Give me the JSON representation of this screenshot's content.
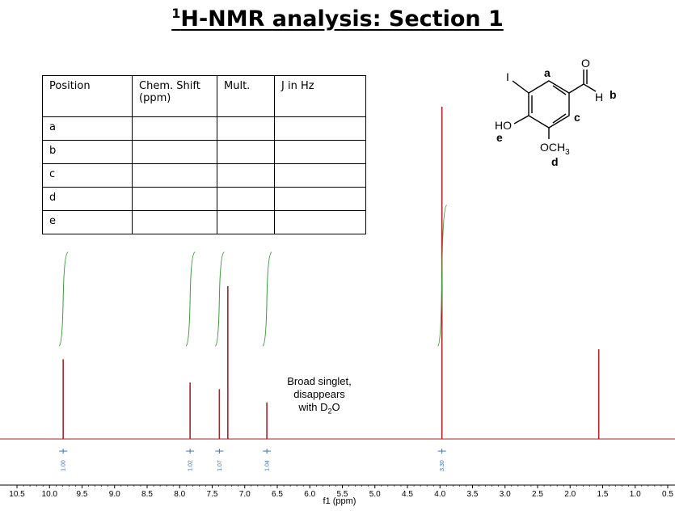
{
  "title_prefix": "1",
  "title_rest": "H-NMR analysis: Section 1",
  "table": {
    "headers": [
      "Position",
      "Chem. Shift (ppm)",
      "Mult.",
      "J in Hz"
    ],
    "rows": [
      "a",
      "b",
      "c",
      "d",
      "e"
    ]
  },
  "annotation": {
    "line1": "Broad singlet,",
    "line2": "disappears",
    "line3_prefix": "with D",
    "line3_sub": "2",
    "line3_suffix": "O"
  },
  "structure": {
    "label_a": "a",
    "label_b": "b",
    "label_c": "c",
    "label_d": "d",
    "label_e": "e",
    "iodo": "I",
    "oxygen": "O",
    "hydroxyl": "HO",
    "hydrogen": "H",
    "methoxy": "OCH",
    "methoxy_sub": "3"
  },
  "chart_data": {
    "type": "line",
    "xlabel": "f1 (ppm)",
    "xlim": [
      10.5,
      0.5
    ],
    "x_reversed": true,
    "xticks": [
      "10.5",
      "10.0",
      "9.5",
      "9.0",
      "8.5",
      "8.0",
      "7.5",
      "7.0",
      "6.5",
      "6.0",
      "5.5",
      "5.0",
      "4.5",
      "4.0",
      "3.5",
      "3.0",
      "2.5",
      "2.0",
      "1.5",
      "1.0",
      "0.5"
    ],
    "peaks": [
      {
        "shift": 9.79,
        "height": 0.24
      },
      {
        "shift": 7.84,
        "height": 0.17
      },
      {
        "shift": 7.39,
        "height": 0.15
      },
      {
        "shift": 7.26,
        "height": 0.46
      },
      {
        "shift": 6.66,
        "height": 0.11
      },
      {
        "shift": 3.97,
        "height": 1.0
      },
      {
        "shift": 1.56,
        "height": 0.27
      }
    ],
    "integrals": [
      {
        "center": 9.79,
        "value": "1.00",
        "curve_height": 0.38
      },
      {
        "center": 7.84,
        "value": "1.02",
        "curve_height": 0.38
      },
      {
        "center": 7.39,
        "value": "1.07",
        "curve_height": 0.38
      },
      {
        "center": 6.66,
        "value": "1.04",
        "curve_height": 0.38
      },
      {
        "center": 3.97,
        "value": "3.30",
        "curve_height": 0.57
      }
    ],
    "colors": {
      "spectrum": "#a8232a",
      "integral": "#3a9a3a",
      "integral_label": "#3c6fb4"
    }
  }
}
